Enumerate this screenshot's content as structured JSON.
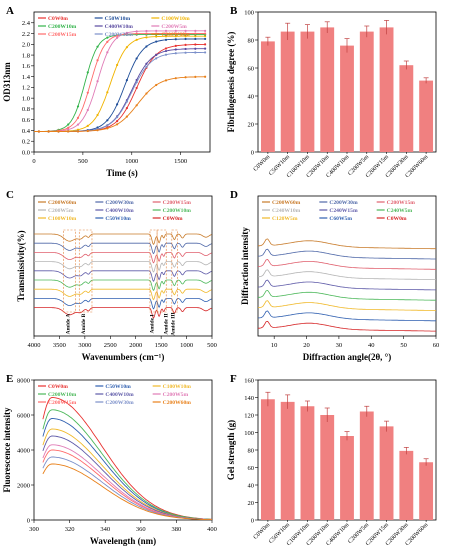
{
  "figure": {
    "panels": [
      "A",
      "B",
      "C",
      "D",
      "E",
      "F"
    ]
  },
  "chart_data": [
    {
      "panel": "A",
      "type": "line",
      "xlabel": "Time (s)",
      "ylabel": "OD313nm",
      "xlim": [
        0,
        1800
      ],
      "ylim": [
        0.0,
        2.6
      ],
      "xticks": [
        0,
        500,
        1000,
        1500
      ],
      "yticks": [
        0.0,
        0.2,
        0.4,
        0.6,
        0.8,
        1.0,
        1.2,
        1.4,
        1.6,
        1.8,
        2.0,
        2.2,
        2.4
      ],
      "grid": false,
      "legend_position": "top",
      "series": [
        {
          "name": "C0W0m",
          "color": "#e8312f",
          "marker": "square",
          "start": 0.38,
          "end": 2.0,
          "mid": 1050,
          "k": 0.01
        },
        {
          "name": "C50W10m",
          "color": "#1f4e99",
          "marker": "circle",
          "start": 0.38,
          "end": 2.1,
          "mid": 930,
          "k": 0.011
        },
        {
          "name": "C100W10m",
          "color": "#f1b400",
          "marker": "triangle",
          "start": 0.38,
          "end": 2.15,
          "mid": 780,
          "k": 0.012
        },
        {
          "name": "C200W10m",
          "color": "#32b34a",
          "marker": "diamond",
          "start": 0.38,
          "end": 2.18,
          "mid": 520,
          "k": 0.015
        },
        {
          "name": "C400W10m",
          "color": "#5a4aa0",
          "marker": "circle",
          "start": 0.38,
          "end": 1.92,
          "mid": 1000,
          "k": 0.01
        },
        {
          "name": "C200W5m",
          "color": "#e07bb6",
          "marker": "triangle",
          "start": 0.38,
          "end": 2.25,
          "mid": 650,
          "k": 0.013
        },
        {
          "name": "C200W15m",
          "color": "#ff6b6b",
          "marker": "square",
          "start": 0.38,
          "end": 2.2,
          "mid": 580,
          "k": 0.014
        },
        {
          "name": "C200W30m",
          "color": "#7b8fc9",
          "marker": "circle",
          "start": 0.38,
          "end": 1.85,
          "mid": 1000,
          "k": 0.01
        },
        {
          "name": "C200W60m",
          "color": "#e8801a",
          "marker": "triangle",
          "start": 0.38,
          "end": 1.4,
          "mid": 1060,
          "k": 0.009
        }
      ]
    },
    {
      "panel": "B",
      "type": "bar",
      "ylabel": "Fibrillogenesis degree (%)",
      "ylim": [
        0,
        100
      ],
      "yticks": [
        0,
        20,
        40,
        60,
        80,
        100
      ],
      "categories": [
        "C0W0m",
        "C50W10m",
        "C100W10m",
        "C200W10m",
        "C400W10m",
        "C200W5m",
        "C200W15m",
        "C200W30m",
        "C200W60m"
      ],
      "values": [
        79,
        86,
        86,
        89,
        76,
        86,
        89,
        62,
        51
      ],
      "errors": [
        3,
        6,
        5,
        4,
        5,
        4,
        5,
        3,
        2
      ],
      "bar_color": "#f08080"
    },
    {
      "panel": "C",
      "type": "line",
      "xlabel": "Wavenumbers (cm⁻¹)",
      "ylabel": "Transmissivity(%)",
      "xlim": [
        4000,
        500
      ],
      "xticks": [
        4000,
        3500,
        3000,
        2500,
        2000,
        1500,
        1000,
        500
      ],
      "legend_position": "top",
      "annotations": [
        "Amide A",
        "Amide B",
        "Amide I",
        "Amide II",
        "Amide III"
      ],
      "series": [
        {
          "name": "C200W60m",
          "color": "#c87b2a"
        },
        {
          "name": "C200W30m",
          "color": "#4f68a8"
        },
        {
          "name": "C200W15m",
          "color": "#e0606e"
        },
        {
          "name": "C200W5m",
          "color": "#b5b5b5"
        },
        {
          "name": "C400W10m",
          "color": "#5e5aa8"
        },
        {
          "name": "C200W10m",
          "color": "#4cb85a"
        },
        {
          "name": "C100W10m",
          "color": "#f0b92a"
        },
        {
          "name": "C50W10m",
          "color": "#2f5fb0"
        },
        {
          "name": "C0W0m",
          "color": "#d62728"
        }
      ]
    },
    {
      "panel": "D",
      "type": "line",
      "xlabel": "Diffraction angle(2θ, °)",
      "ylabel": "Diffraction intensity",
      "xlim": [
        5,
        60
      ],
      "xticks": [
        10,
        20,
        30,
        40,
        50,
        60
      ],
      "legend_position": "top",
      "series": [
        {
          "name": "C200W60m",
          "color": "#c87b2a"
        },
        {
          "name": "C200W30m",
          "color": "#4f68a8"
        },
        {
          "name": "C200W15m",
          "color": "#e0606e"
        },
        {
          "name": "C240W10m",
          "color": "#b5b5b5"
        },
        {
          "name": "C240W15m",
          "color": "#5e5aa8"
        },
        {
          "name": "C240W5m",
          "color": "#4cb85a"
        },
        {
          "name": "C120W5m",
          "color": "#f0b92a"
        },
        {
          "name": "C60W5m",
          "color": "#2f5fb0"
        },
        {
          "name": "C0W0m",
          "color": "#d62728"
        }
      ]
    },
    {
      "panel": "E",
      "type": "line",
      "xlabel": "Wavelength (nm)",
      "ylabel": "Fluorescence intensity",
      "xlim": [
        300,
        400
      ],
      "ylim": [
        0,
        8000
      ],
      "xticks": [
        300,
        320,
        340,
        360,
        380,
        400
      ],
      "yticks": [
        0,
        2000,
        4000,
        6000,
        8000
      ],
      "legend_position": "top",
      "series": [
        {
          "name": "C0W0m",
          "color": "#e8312f",
          "peak": 7000
        },
        {
          "name": "C50W10m",
          "color": "#2f5fb0",
          "peak": 5800
        },
        {
          "name": "C100W10m",
          "color": "#f0b92a",
          "peak": 5200
        },
        {
          "name": "C200W10m",
          "color": "#4cb85a",
          "peak": 6300
        },
        {
          "name": "C400W10m",
          "color": "#5e5aa8",
          "peak": 4800
        },
        {
          "name": "C200W5m",
          "color": "#e07bb6",
          "peak": 4300
        },
        {
          "name": "C200W15m",
          "color": "#ff6b6b",
          "peak": 4000
        },
        {
          "name": "C200W30m",
          "color": "#7b8fc9",
          "peak": 3600
        },
        {
          "name": "C200W60m",
          "color": "#e8801a",
          "peak": 3200
        }
      ]
    },
    {
      "panel": "F",
      "type": "bar",
      "ylabel": "Gel strength (g)",
      "ylim": [
        0,
        160
      ],
      "yticks": [
        0,
        20,
        40,
        60,
        80,
        100,
        120,
        140,
        160
      ],
      "categories": [
        "C0W0m",
        "C50W10m",
        "C100W10m",
        "C200W10m",
        "C400W10m",
        "C200W5m",
        "C200W15m",
        "C200W30m",
        "C200W60m"
      ],
      "values": [
        138,
        135,
        130,
        120,
        96,
        124,
        107,
        79,
        66
      ],
      "errors": [
        8,
        8,
        6,
        8,
        5,
        6,
        6,
        4,
        4
      ],
      "bar_color": "#f08080"
    }
  ]
}
